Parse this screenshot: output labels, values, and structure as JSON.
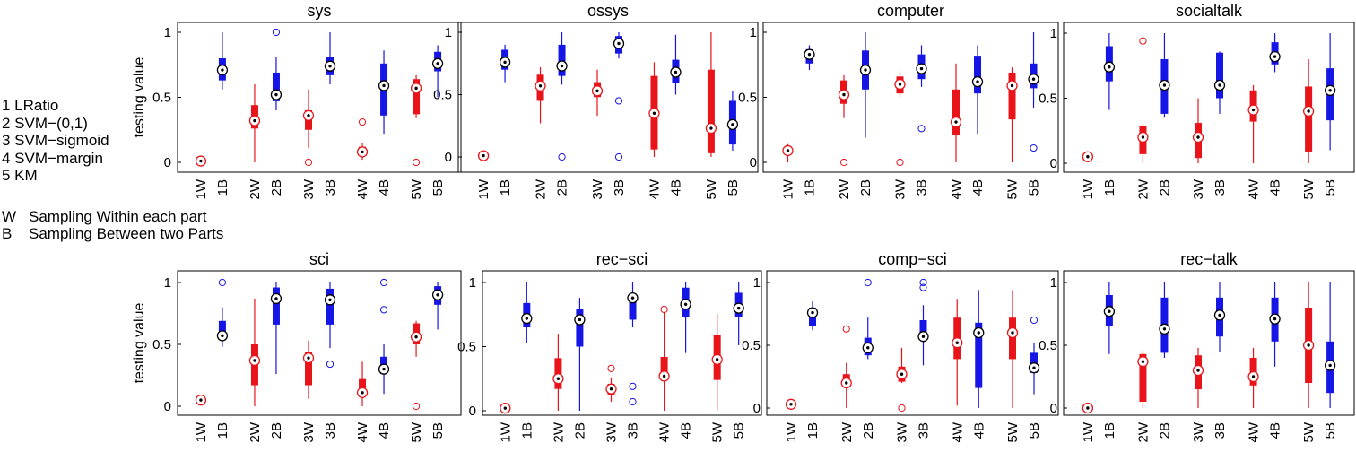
{
  "legend": {
    "methods": [
      "1 LRatio",
      "2 SVM−(0,1)",
      "3 SVM−sigmoid",
      "4 SVM−margin",
      "5 KM"
    ],
    "sampling": [
      {
        "key": "W",
        "text": "Sampling Within each part"
      },
      {
        "key": "B",
        "text": "Sampling Between two Parts"
      }
    ]
  },
  "colors": {
    "within": "#e8141a",
    "between": "#1515e6"
  },
  "chart_data": [
    {
      "type": "box",
      "title": "sys",
      "ylabel": "testing value",
      "ylim": [
        0,
        1
      ],
      "yticks": [
        "0",
        "0.5",
        "1"
      ],
      "categories": [
        "1W",
        "1B",
        "2W",
        "2B",
        "3W",
        "3B",
        "4W",
        "4B",
        "5W",
        "5B"
      ],
      "boxes": [
        {
          "median": 0.01,
          "q1": 0.01,
          "q3": 0.01,
          "min": 0.01,
          "max": 0.01,
          "outliers": []
        },
        {
          "median": 0.71,
          "q1": 0.63,
          "q3": 0.8,
          "min": 0.56,
          "max": 1.0,
          "outliers": []
        },
        {
          "median": 0.32,
          "q1": 0.26,
          "q3": 0.44,
          "min": 0.0,
          "max": 0.6,
          "outliers": []
        },
        {
          "median": 0.52,
          "q1": 0.47,
          "q3": 0.69,
          "min": 0.4,
          "max": 0.81,
          "outliers": [
            1.0
          ]
        },
        {
          "median": 0.36,
          "q1": 0.25,
          "q3": 0.4,
          "min": 0.11,
          "max": 0.56,
          "outliers": [
            0.0
          ]
        },
        {
          "median": 0.74,
          "q1": 0.67,
          "q3": 0.81,
          "min": 0.6,
          "max": 1.0,
          "outliers": []
        },
        {
          "median": 0.08,
          "q1": 0.05,
          "q3": 0.12,
          "min": 0.02,
          "max": 0.15,
          "outliers": [
            0.31
          ]
        },
        {
          "median": 0.59,
          "q1": 0.36,
          "q3": 0.76,
          "min": 0.22,
          "max": 0.86,
          "outliers": []
        },
        {
          "median": 0.57,
          "q1": 0.37,
          "q3": 0.64,
          "min": 0.34,
          "max": 0.67,
          "outliers": [
            0.0
          ]
        },
        {
          "median": 0.76,
          "q1": 0.7,
          "q3": 0.85,
          "min": 0.5,
          "max": 0.9,
          "outliers": []
        }
      ]
    },
    {
      "type": "box",
      "title": "ossys",
      "ylabel": "",
      "ylim": [
        0,
        1
      ],
      "yticks": [
        "0",
        "0.5",
        "1"
      ],
      "categories": [
        "1W",
        "1B",
        "2W",
        "2B",
        "3W",
        "3B",
        "4W",
        "4B",
        "5W",
        "5B"
      ],
      "boxes": [
        {
          "median": 0.01,
          "q1": 0.01,
          "q3": 0.01,
          "min": 0.01,
          "max": 0.01,
          "outliers": []
        },
        {
          "median": 0.76,
          "q1": 0.7,
          "q3": 0.86,
          "min": 0.6,
          "max": 0.9,
          "outliers": []
        },
        {
          "median": 0.57,
          "q1": 0.45,
          "q3": 0.66,
          "min": 0.27,
          "max": 0.72,
          "outliers": []
        },
        {
          "median": 0.73,
          "q1": 0.65,
          "q3": 0.9,
          "min": 0.58,
          "max": 1.0,
          "outliers": [
            0.0
          ]
        },
        {
          "median": 0.53,
          "q1": 0.48,
          "q3": 0.6,
          "min": 0.33,
          "max": 0.7,
          "outliers": []
        },
        {
          "median": 0.91,
          "q1": 0.83,
          "q3": 0.97,
          "min": 0.79,
          "max": 1.0,
          "outliers": [
            0.45,
            0.0
          ]
        },
        {
          "median": 0.35,
          "q1": 0.06,
          "q3": 0.65,
          "min": 0.0,
          "max": 0.76,
          "outliers": []
        },
        {
          "median": 0.68,
          "q1": 0.59,
          "q3": 0.78,
          "min": 0.5,
          "max": 0.98,
          "outliers": []
        },
        {
          "median": 0.23,
          "q1": 0.03,
          "q3": 0.7,
          "min": 0.0,
          "max": 1.0,
          "outliers": []
        },
        {
          "median": 0.26,
          "q1": 0.1,
          "q3": 0.45,
          "min": 0.05,
          "max": 0.53,
          "outliers": []
        }
      ]
    },
    {
      "type": "box",
      "title": "computer",
      "ylabel": "",
      "ylim": [
        0,
        1
      ],
      "yticks": [
        "0",
        "0.5",
        "1"
      ],
      "categories": [
        "1W",
        "1B",
        "2W",
        "2B",
        "3W",
        "3B",
        "4W",
        "4B",
        "5W",
        "5B"
      ],
      "boxes": [
        {
          "median": 0.09,
          "q1": 0.07,
          "q3": 0.11,
          "min": 0.0,
          "max": 0.14,
          "outliers": []
        },
        {
          "median": 0.83,
          "q1": 0.76,
          "q3": 0.87,
          "min": 0.71,
          "max": 0.9,
          "outliers": []
        },
        {
          "median": 0.52,
          "q1": 0.45,
          "q3": 0.63,
          "min": 0.34,
          "max": 0.67,
          "outliers": [
            0.0
          ]
        },
        {
          "median": 0.71,
          "q1": 0.56,
          "q3": 0.86,
          "min": 0.19,
          "max": 1.0,
          "outliers": []
        },
        {
          "median": 0.6,
          "q1": 0.53,
          "q3": 0.66,
          "min": 0.5,
          "max": 0.7,
          "outliers": [
            0.0
          ]
        },
        {
          "median": 0.72,
          "q1": 0.64,
          "q3": 0.83,
          "min": 0.58,
          "max": 0.9,
          "outliers": [
            0.26
          ]
        },
        {
          "median": 0.31,
          "q1": 0.21,
          "q3": 0.56,
          "min": 0.0,
          "max": 0.76,
          "outliers": []
        },
        {
          "median": 0.62,
          "q1": 0.53,
          "q3": 0.82,
          "min": 0.22,
          "max": 0.9,
          "outliers": []
        },
        {
          "median": 0.59,
          "q1": 0.33,
          "q3": 0.69,
          "min": 0.0,
          "max": 0.73,
          "outliers": []
        },
        {
          "median": 0.64,
          "q1": 0.57,
          "q3": 0.76,
          "min": 0.42,
          "max": 1.0,
          "outliers": [
            0.11
          ]
        }
      ]
    },
    {
      "type": "box",
      "title": "socialtalk",
      "ylabel": "",
      "ylim": [
        0,
        1
      ],
      "yticks": [
        "0",
        "0.5",
        "1"
      ],
      "categories": [
        "1W",
        "1B",
        "2W",
        "2B",
        "3W",
        "3B",
        "4W",
        "4B",
        "5W",
        "5B"
      ],
      "boxes": [
        {
          "median": 0.05,
          "q1": 0.05,
          "q3": 0.05,
          "min": 0.05,
          "max": 0.05,
          "outliers": []
        },
        {
          "median": 0.74,
          "q1": 0.63,
          "q3": 0.9,
          "min": 0.41,
          "max": 1.0,
          "outliers": []
        },
        {
          "median": 0.2,
          "q1": 0.07,
          "q3": 0.29,
          "min": 0.0,
          "max": 0.3,
          "outliers": [
            0.94
          ]
        },
        {
          "median": 0.6,
          "q1": 0.38,
          "q3": 0.8,
          "min": 0.35,
          "max": 1.0,
          "outliers": []
        },
        {
          "median": 0.2,
          "q1": 0.04,
          "q3": 0.31,
          "min": 0.0,
          "max": 0.5,
          "outliers": []
        },
        {
          "median": 0.6,
          "q1": 0.5,
          "q3": 0.85,
          "min": 0.38,
          "max": 0.86,
          "outliers": []
        },
        {
          "median": 0.41,
          "q1": 0.32,
          "q3": 0.56,
          "min": 0.0,
          "max": 0.6,
          "outliers": []
        },
        {
          "median": 0.82,
          "q1": 0.76,
          "q3": 0.93,
          "min": 0.7,
          "max": 1.0,
          "outliers": []
        },
        {
          "median": 0.4,
          "q1": 0.09,
          "q3": 0.59,
          "min": 0.0,
          "max": 0.8,
          "outliers": []
        },
        {
          "median": 0.56,
          "q1": 0.33,
          "q3": 0.73,
          "min": 0.1,
          "max": 1.0,
          "outliers": []
        }
      ]
    },
    {
      "type": "box",
      "title": "sci",
      "ylabel": "testing value",
      "ylim": [
        0,
        1
      ],
      "yticks": [
        "0",
        "0.5",
        "1"
      ],
      "categories": [
        "1W",
        "1B",
        "2W",
        "2B",
        "3W",
        "3B",
        "4W",
        "4B",
        "5W",
        "5B"
      ],
      "boxes": [
        {
          "median": 0.05,
          "q1": 0.05,
          "q3": 0.05,
          "min": 0.05,
          "max": 0.05,
          "outliers": []
        },
        {
          "median": 0.57,
          "q1": 0.57,
          "q3": 0.69,
          "min": 0.48,
          "max": 0.8,
          "outliers": [
            1.0
          ]
        },
        {
          "median": 0.37,
          "q1": 0.17,
          "q3": 0.5,
          "min": 0.0,
          "max": 0.87,
          "outliers": []
        },
        {
          "median": 0.87,
          "q1": 0.66,
          "q3": 0.96,
          "min": 0.26,
          "max": 1.0,
          "outliers": []
        },
        {
          "median": 0.39,
          "q1": 0.17,
          "q3": 0.44,
          "min": 0.06,
          "max": 0.53,
          "outliers": []
        },
        {
          "median": 0.86,
          "q1": 0.66,
          "q3": 0.95,
          "min": 0.47,
          "max": 1.0,
          "outliers": [
            0.34
          ]
        },
        {
          "median": 0.11,
          "q1": 0.1,
          "q3": 0.22,
          "min": 0.0,
          "max": 0.36,
          "outliers": []
        },
        {
          "median": 0.3,
          "q1": 0.26,
          "q3": 0.4,
          "min": 0.1,
          "max": 0.5,
          "outliers": [
            1.0,
            0.78
          ]
        },
        {
          "median": 0.56,
          "q1": 0.5,
          "q3": 0.67,
          "min": 0.4,
          "max": 0.69,
          "outliers": [
            0.0
          ]
        },
        {
          "median": 0.9,
          "q1": 0.82,
          "q3": 0.97,
          "min": 0.62,
          "max": 1.0,
          "outliers": []
        }
      ]
    },
    {
      "type": "box",
      "title": "rec−sci",
      "ylabel": "",
      "ylim": [
        0,
        1
      ],
      "yticks": [
        "0",
        "0.5",
        "1"
      ],
      "categories": [
        "1W",
        "1B",
        "2W",
        "2B",
        "3W",
        "3B",
        "4W",
        "4B",
        "5W",
        "5B"
      ],
      "boxes": [
        {
          "median": 0.02,
          "q1": 0.02,
          "q3": 0.02,
          "min": 0.02,
          "max": 0.02,
          "outliers": []
        },
        {
          "median": 0.72,
          "q1": 0.65,
          "q3": 0.84,
          "min": 0.53,
          "max": 1.0,
          "outliers": []
        },
        {
          "median": 0.25,
          "q1": 0.17,
          "q3": 0.41,
          "min": 0.0,
          "max": 0.6,
          "outliers": []
        },
        {
          "median": 0.71,
          "q1": 0.5,
          "q3": 0.79,
          "min": 0.0,
          "max": 0.88,
          "outliers": []
        },
        {
          "median": 0.17,
          "q1": 0.12,
          "q3": 0.21,
          "min": 0.07,
          "max": 0.26,
          "outliers": [
            0.33
          ]
        },
        {
          "median": 0.88,
          "q1": 0.71,
          "q3": 0.9,
          "min": 0.65,
          "max": 1.0,
          "outliers": [
            0.19,
            0.07
          ]
        },
        {
          "median": 0.27,
          "q1": 0.27,
          "q3": 0.42,
          "min": 0.0,
          "max": 0.77,
          "outliers": [
            0.79
          ]
        },
        {
          "median": 0.83,
          "q1": 0.73,
          "q3": 0.96,
          "min": 0.45,
          "max": 1.0,
          "outliers": []
        },
        {
          "median": 0.4,
          "q1": 0.24,
          "q3": 0.59,
          "min": 0.0,
          "max": 0.76,
          "outliers": []
        },
        {
          "median": 0.8,
          "q1": 0.73,
          "q3": 0.92,
          "min": 0.51,
          "max": 1.0,
          "outliers": []
        }
      ]
    },
    {
      "type": "box",
      "title": "comp−sci",
      "ylabel": "",
      "ylim": [
        0,
        1
      ],
      "yticks": [
        "0",
        "0.5",
        "1"
      ],
      "categories": [
        "1W",
        "1B",
        "2W",
        "2B",
        "3W",
        "3B",
        "4W",
        "4B",
        "5W",
        "5B"
      ],
      "boxes": [
        {
          "median": 0.03,
          "q1": 0.03,
          "q3": 0.03,
          "min": 0.03,
          "max": 0.03,
          "outliers": []
        },
        {
          "median": 0.76,
          "q1": 0.65,
          "q3": 0.8,
          "min": 0.62,
          "max": 0.85,
          "outliers": []
        },
        {
          "median": 0.2,
          "q1": 0.18,
          "q3": 0.27,
          "min": 0.0,
          "max": 0.36,
          "outliers": [
            0.63
          ]
        },
        {
          "median": 0.48,
          "q1": 0.42,
          "q3": 0.56,
          "min": 0.39,
          "max": 0.72,
          "outliers": [
            1.0
          ]
        },
        {
          "median": 0.27,
          "q1": 0.21,
          "q3": 0.33,
          "min": 0.2,
          "max": 0.48,
          "outliers": [
            0.0
          ]
        },
        {
          "median": 0.57,
          "q1": 0.57,
          "q3": 0.7,
          "min": 0.34,
          "max": 0.82,
          "outliers": [
            1.0,
            0.96
          ]
        },
        {
          "median": 0.52,
          "q1": 0.39,
          "q3": 0.72,
          "min": 0.02,
          "max": 0.87,
          "outliers": []
        },
        {
          "median": 0.6,
          "q1": 0.16,
          "q3": 0.68,
          "min": 0.0,
          "max": 0.94,
          "outliers": []
        },
        {
          "median": 0.6,
          "q1": 0.39,
          "q3": 0.72,
          "min": 0.0,
          "max": 0.94,
          "outliers": []
        },
        {
          "median": 0.32,
          "q1": 0.28,
          "q3": 0.44,
          "min": 0.11,
          "max": 0.52,
          "outliers": [
            0.7
          ]
        }
      ]
    },
    {
      "type": "box",
      "title": "rec−talk",
      "ylabel": "",
      "ylim": [
        0,
        1
      ],
      "yticks": [
        "0",
        "0.5",
        "1"
      ],
      "categories": [
        "1W",
        "1B",
        "2W",
        "2B",
        "3W",
        "3B",
        "4W",
        "4B",
        "5W",
        "5B"
      ],
      "boxes": [
        {
          "median": 0.0,
          "q1": 0.0,
          "q3": 0.0,
          "min": 0.0,
          "max": 0.03,
          "outliers": []
        },
        {
          "median": 0.77,
          "q1": 0.65,
          "q3": 0.9,
          "min": 0.43,
          "max": 1.0,
          "outliers": []
        },
        {
          "median": 0.37,
          "q1": 0.05,
          "q3": 0.43,
          "min": 0.0,
          "max": 0.46,
          "outliers": []
        },
        {
          "median": 0.63,
          "q1": 0.44,
          "q3": 0.88,
          "min": 0.4,
          "max": 1.0,
          "outliers": []
        },
        {
          "median": 0.3,
          "q1": 0.15,
          "q3": 0.42,
          "min": 0.0,
          "max": 0.48,
          "outliers": []
        },
        {
          "median": 0.74,
          "q1": 0.57,
          "q3": 0.88,
          "min": 0.45,
          "max": 1.0,
          "outliers": []
        },
        {
          "median": 0.25,
          "q1": 0.18,
          "q3": 0.4,
          "min": 0.0,
          "max": 0.48,
          "outliers": []
        },
        {
          "median": 0.71,
          "q1": 0.53,
          "q3": 0.88,
          "min": 0.33,
          "max": 1.0,
          "outliers": []
        },
        {
          "median": 0.5,
          "q1": 0.2,
          "q3": 0.8,
          "min": 0.0,
          "max": 1.0,
          "outliers": []
        },
        {
          "median": 0.34,
          "q1": 0.12,
          "q3": 0.53,
          "min": 0.0,
          "max": 1.0,
          "outliers": []
        }
      ]
    }
  ]
}
